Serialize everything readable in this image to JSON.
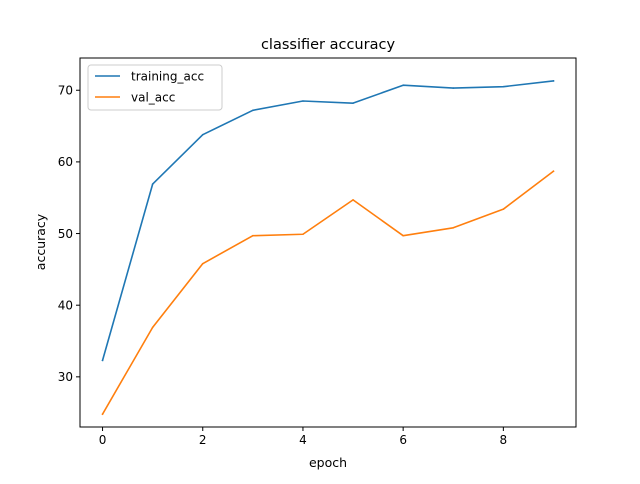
{
  "chart_data": {
    "type": "line",
    "title": "classifier accuracy",
    "xlabel": "epoch",
    "ylabel": "accuracy",
    "xlim": [
      -0.45,
      9.45
    ],
    "ylim": [
      23.0,
      74.5
    ],
    "xticks": [
      0,
      2,
      4,
      6,
      8
    ],
    "yticks": [
      30,
      40,
      50,
      60,
      70
    ],
    "grid": false,
    "legend_position": "upper-left",
    "x": [
      0,
      1,
      2,
      3,
      4,
      5,
      6,
      7,
      8,
      9
    ],
    "series": [
      {
        "name": "training_acc",
        "color": "#1f77b4",
        "values": [
          32.3,
          56.9,
          63.8,
          67.2,
          68.5,
          68.2,
          70.7,
          70.3,
          70.5,
          71.3
        ]
      },
      {
        "name": "val_acc",
        "color": "#ff7f0e",
        "values": [
          24.8,
          36.9,
          45.8,
          49.7,
          49.9,
          54.7,
          49.7,
          50.8,
          53.4,
          58.7
        ]
      }
    ]
  }
}
